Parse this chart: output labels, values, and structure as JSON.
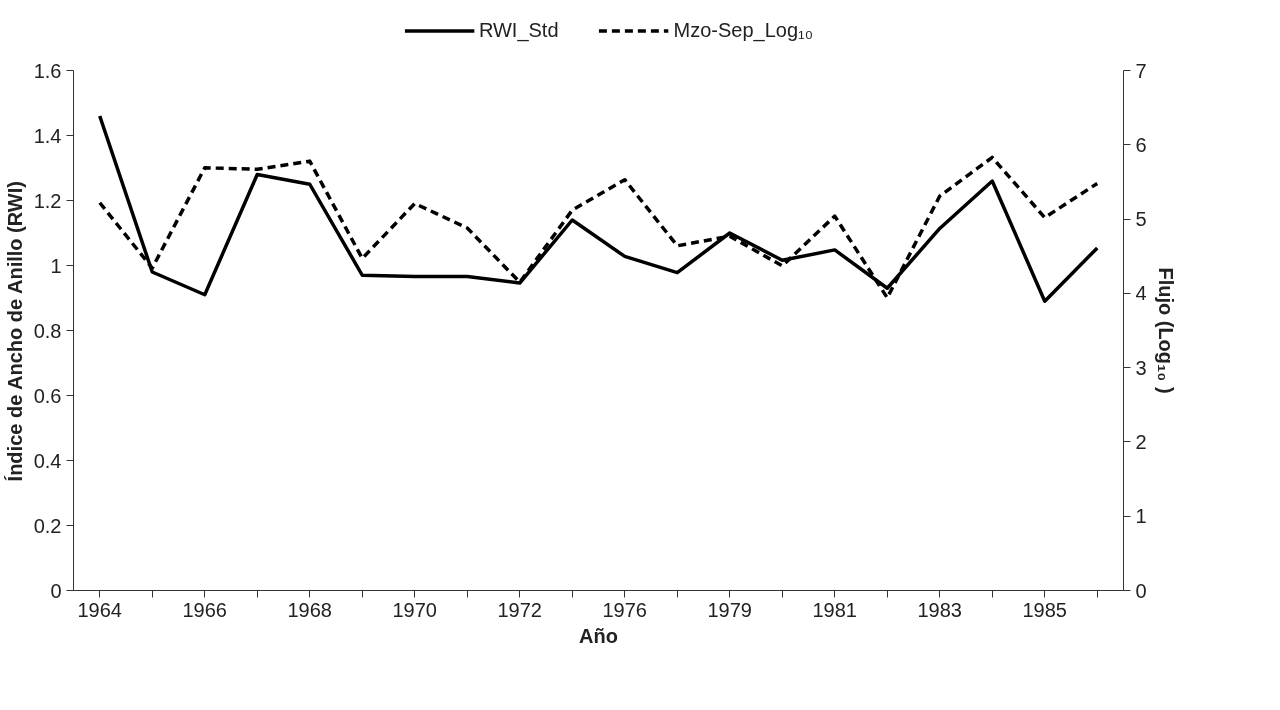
{
  "chart_data": {
    "type": "line",
    "xlabel": "Año",
    "ylabel": "Índice de Ancho de Anillo (RWI)",
    "y2label": "Flujo (Log₁₀ )",
    "categories": [
      "1964",
      null,
      "1966",
      null,
      "1968",
      null,
      "1970",
      null,
      "1972",
      null,
      "1976",
      null,
      "1979",
      null,
      "1981",
      null,
      "1983",
      null,
      "1985",
      null
    ],
    "series": [
      {
        "name": "RWI_Std",
        "color": "#000000",
        "line_style": "solid",
        "values": [
          1.46,
          0.98,
          0.91,
          1.28,
          1.25,
          0.97,
          0.966,
          0.966,
          0.946,
          1.14,
          1.028,
          0.978,
          1.1,
          1.016,
          1.048,
          0.93,
          1.114,
          1.26,
          0.89,
          1.054
        ]
      },
      {
        "name": "Mzo-Sep_Log₁₀",
        "color": "#000000",
        "line_style": "dashed",
        "axis": "y2",
        "values": [
          5.22,
          4.34,
          5.69,
          5.67,
          5.78,
          4.47,
          5.21,
          4.88,
          4.15,
          5.12,
          5.53,
          4.64,
          4.77,
          4.37,
          5.04,
          3.94,
          5.31,
          5.83,
          5.02,
          5.48
        ]
      }
    ],
    "ylim": [
      0,
      1.6
    ],
    "yticks": [
      0,
      0.2,
      0.4,
      0.6,
      0.8,
      1,
      1.2,
      1.4,
      1.6
    ],
    "y2lim": [
      0,
      7
    ],
    "y2ticks": [
      0,
      1,
      2,
      3,
      4,
      5,
      6,
      7
    ],
    "grid": false,
    "legend": "top",
    "marker": "none"
  }
}
